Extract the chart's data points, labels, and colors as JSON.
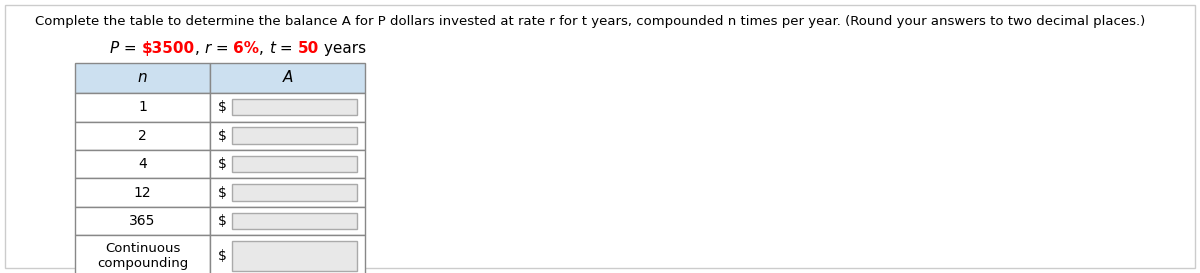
{
  "title": "Complete the table to determine the balance A for P dollars invested at rate r for t years, compounded n times per year. (Round your answers to two decimal places.)",
  "subtitle_parts": [
    {
      "text": "P",
      "color": "black",
      "style": "italic",
      "weight": "normal"
    },
    {
      "text": " = ",
      "color": "black",
      "style": "normal",
      "weight": "normal"
    },
    {
      "text": "$3500",
      "color": "red",
      "style": "normal",
      "weight": "bold"
    },
    {
      "text": ", ",
      "color": "black",
      "style": "normal",
      "weight": "normal"
    },
    {
      "text": "r",
      "color": "black",
      "style": "italic",
      "weight": "normal"
    },
    {
      "text": " = ",
      "color": "black",
      "style": "normal",
      "weight": "normal"
    },
    {
      "text": "6%",
      "color": "red",
      "style": "normal",
      "weight": "bold"
    },
    {
      "text": ", ",
      "color": "black",
      "style": "normal",
      "weight": "normal"
    },
    {
      "text": "t",
      "color": "black",
      "style": "italic",
      "weight": "normal"
    },
    {
      "text": " = ",
      "color": "black",
      "style": "normal",
      "weight": "normal"
    },
    {
      "text": "50",
      "color": "red",
      "style": "normal",
      "weight": "bold"
    },
    {
      "text": " years",
      "color": "black",
      "style": "normal",
      "weight": "normal"
    }
  ],
  "col_headers": [
    "n",
    "A"
  ],
  "rows": [
    "1",
    "2",
    "4",
    "12",
    "365",
    "Continuous\ncompounding"
  ],
  "header_bg": "#cce0f0",
  "header_border": "#888888",
  "cell_bg": "#ffffff",
  "cell_border": "#888888",
  "input_box_bg": "#e8e8e8",
  "bg_color": "#ffffff",
  "title_fontsize": 9.5,
  "subtitle_fontsize": 11,
  "table_fontsize": 10
}
